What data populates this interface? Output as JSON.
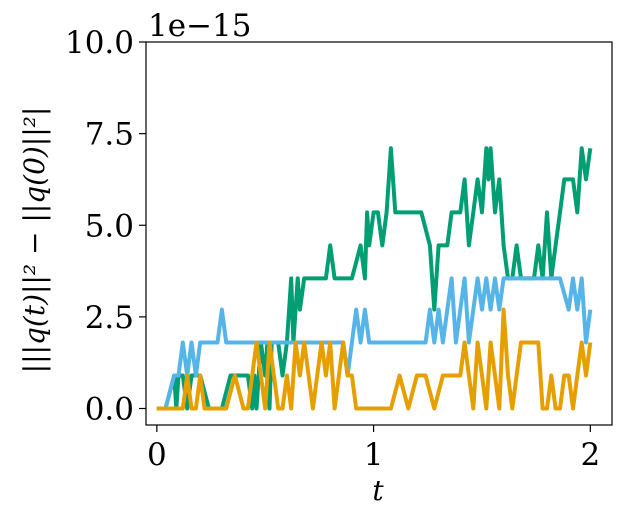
{
  "chart_data": {
    "type": "line",
    "xlabel": "t",
    "ylabel": "|||q(t)||² − ||q(0)||²|",
    "y_offset_label": "1e−15",
    "xlim": [
      -0.05,
      2.1
    ],
    "ylim": [
      -0.45,
      10.0
    ],
    "x_ticks": [
      0,
      1,
      2
    ],
    "x_tick_labels": [
      "0",
      "1",
      "2"
    ],
    "y_ticks": [
      0.0,
      2.5,
      5.0,
      7.5,
      10.0
    ],
    "y_tick_labels": [
      "0.0",
      "2.5",
      "5.0",
      "7.5",
      "10.0"
    ],
    "grid": false,
    "series": [
      {
        "color": "#009E73",
        "x": [
          0.0,
          0.04,
          0.08,
          0.09,
          0.1,
          0.12,
          0.14,
          0.16,
          0.2,
          0.24,
          0.26,
          0.3,
          0.34,
          0.38,
          0.42,
          0.44,
          0.45,
          0.46,
          0.48,
          0.5,
          0.51,
          0.52,
          0.53,
          0.54,
          0.56,
          0.58,
          0.6,
          0.62,
          0.63,
          0.64,
          0.65,
          0.66,
          0.68,
          0.7,
          0.74,
          0.78,
          0.8,
          0.82,
          0.86,
          0.9,
          0.94,
          0.96,
          0.97,
          0.98,
          1.0,
          1.02,
          1.04,
          1.06,
          1.08,
          1.1,
          1.12,
          1.14,
          1.18,
          1.22,
          1.26,
          1.28,
          1.3,
          1.32,
          1.34,
          1.36,
          1.38,
          1.4,
          1.42,
          1.44,
          1.46,
          1.48,
          1.5,
          1.52,
          1.53,
          1.54,
          1.56,
          1.58,
          1.6,
          1.62,
          1.64,
          1.66,
          1.68,
          1.7,
          1.72,
          1.74,
          1.76,
          1.78,
          1.8,
          1.82,
          1.84,
          1.86,
          1.88,
          1.9,
          1.92,
          1.94,
          1.96,
          1.98,
          2.0
        ],
        "values": [
          0.0,
          0.0,
          0.9,
          0.0,
          0.9,
          0.9,
          0.0,
          0.9,
          0.9,
          0.0,
          0.0,
          0.0,
          0.9,
          0.9,
          0.9,
          0.0,
          0.9,
          0.0,
          1.8,
          0.9,
          1.8,
          0.0,
          1.8,
          1.8,
          1.8,
          0.9,
          1.8,
          3.55,
          1.8,
          2.7,
          3.55,
          2.7,
          3.55,
          3.55,
          3.55,
          3.55,
          4.45,
          3.55,
          3.55,
          3.55,
          4.45,
          3.55,
          5.35,
          4.45,
          5.35,
          5.35,
          4.45,
          5.35,
          7.1,
          5.35,
          5.35,
          5.35,
          5.35,
          5.35,
          4.45,
          2.7,
          4.45,
          4.45,
          4.45,
          5.35,
          5.35,
          5.35,
          6.25,
          4.45,
          5.35,
          6.25,
          5.35,
          7.1,
          6.25,
          7.1,
          5.35,
          6.25,
          4.45,
          3.55,
          3.55,
          4.45,
          3.55,
          3.55,
          3.55,
          3.55,
          4.45,
          3.55,
          5.35,
          3.55,
          4.45,
          5.35,
          6.25,
          6.25,
          6.25,
          5.35,
          7.1,
          6.25,
          7.1
        ]
      },
      {
        "color": "#56B4E9",
        "x": [
          0.0,
          0.04,
          0.08,
          0.1,
          0.12,
          0.14,
          0.16,
          0.18,
          0.2,
          0.22,
          0.24,
          0.26,
          0.28,
          0.3,
          0.32,
          0.34,
          0.38,
          0.42,
          0.46,
          0.5,
          0.54,
          0.58,
          0.62,
          0.66,
          0.7,
          0.74,
          0.78,
          0.82,
          0.86,
          0.88,
          0.9,
          0.92,
          0.94,
          0.96,
          0.98,
          1.0,
          1.04,
          1.08,
          1.12,
          1.16,
          1.2,
          1.24,
          1.26,
          1.28,
          1.3,
          1.32,
          1.34,
          1.36,
          1.38,
          1.4,
          1.42,
          1.44,
          1.46,
          1.48,
          1.5,
          1.52,
          1.54,
          1.56,
          1.58,
          1.6,
          1.62,
          1.66,
          1.7,
          1.74,
          1.78,
          1.82,
          1.86,
          1.9,
          1.92,
          1.94,
          1.96,
          1.98,
          2.0
        ],
        "values": [
          0.0,
          0.0,
          0.9,
          0.9,
          1.8,
          0.9,
          1.8,
          0.9,
          1.8,
          1.8,
          1.8,
          1.8,
          1.8,
          2.7,
          1.8,
          1.8,
          1.8,
          1.8,
          1.8,
          1.8,
          1.8,
          1.8,
          1.8,
          1.8,
          1.8,
          1.8,
          1.8,
          1.8,
          1.8,
          0.9,
          1.8,
          2.7,
          1.8,
          2.7,
          1.8,
          1.8,
          1.8,
          1.8,
          1.8,
          1.8,
          1.8,
          1.8,
          2.7,
          1.8,
          2.7,
          1.8,
          2.7,
          3.55,
          1.8,
          2.7,
          3.55,
          1.8,
          2.7,
          3.55,
          2.7,
          3.55,
          2.7,
          3.55,
          2.7,
          3.55,
          3.55,
          3.55,
          3.55,
          3.55,
          3.55,
          3.55,
          3.55,
          2.7,
          3.55,
          2.7,
          3.55,
          1.8,
          2.7
        ]
      },
      {
        "color": "#E69F00",
        "x": [
          0.0,
          0.1,
          0.12,
          0.14,
          0.16,
          0.18,
          0.2,
          0.22,
          0.24,
          0.26,
          0.28,
          0.32,
          0.36,
          0.4,
          0.42,
          0.44,
          0.46,
          0.48,
          0.5,
          0.52,
          0.54,
          0.56,
          0.58,
          0.6,
          0.62,
          0.64,
          0.66,
          0.68,
          0.7,
          0.72,
          0.74,
          0.76,
          0.78,
          0.8,
          0.82,
          0.84,
          0.86,
          0.88,
          0.9,
          0.92,
          0.96,
          1.0,
          1.04,
          1.08,
          1.12,
          1.16,
          1.2,
          1.24,
          1.28,
          1.32,
          1.36,
          1.4,
          1.42,
          1.44,
          1.46,
          1.48,
          1.5,
          1.52,
          1.54,
          1.56,
          1.58,
          1.6,
          1.62,
          1.64,
          1.66,
          1.68,
          1.7,
          1.72,
          1.74,
          1.76,
          1.78,
          1.8,
          1.82,
          1.84,
          1.86,
          1.88,
          1.9,
          1.92,
          1.94,
          1.96,
          1.98,
          2.0
        ],
        "values": [
          0.0,
          0.0,
          0.0,
          0.9,
          0.0,
          0.0,
          0.9,
          0.0,
          0.0,
          0.0,
          0.0,
          0.0,
          0.9,
          0.0,
          0.0,
          0.9,
          1.8,
          0.9,
          0.0,
          1.8,
          0.9,
          0.0,
          0.0,
          0.9,
          0.0,
          1.8,
          0.9,
          1.8,
          0.9,
          0.0,
          0.9,
          1.8,
          0.9,
          1.8,
          0.0,
          0.9,
          1.8,
          0.9,
          0.9,
          0.0,
          0.0,
          0.0,
          0.0,
          0.0,
          0.9,
          0.0,
          0.9,
          0.9,
          0.0,
          0.9,
          0.9,
          0.9,
          1.8,
          0.9,
          0.0,
          1.8,
          0.9,
          0.0,
          1.8,
          0.9,
          0.0,
          2.7,
          0.9,
          0.0,
          0.9,
          1.8,
          1.8,
          1.8,
          1.8,
          1.8,
          0.0,
          0.0,
          0.9,
          0.0,
          0.0,
          0.9,
          0.9,
          0.0,
          0.9,
          1.8,
          0.9,
          1.8
        ]
      }
    ]
  }
}
